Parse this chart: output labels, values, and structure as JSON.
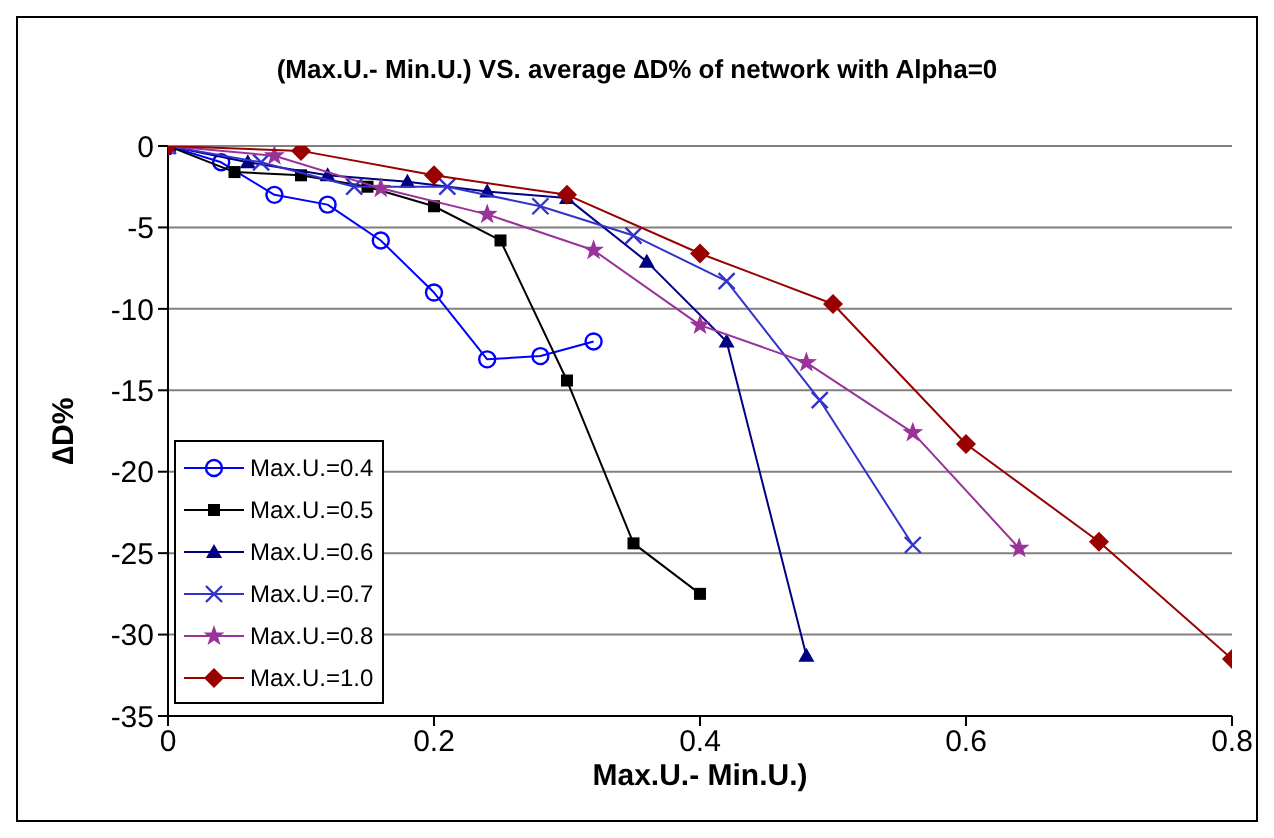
{
  "chart_data": {
    "type": "line",
    "title": "(Max.U.- Min.U.) VS. average ∆D% of network with Alpha=0",
    "xlabel": "Max.U.- Min.U.)",
    "ylabel": "∆D%",
    "xlim": [
      0,
      0.8
    ],
    "xticks": [
      0,
      0.2,
      0.4,
      0.6,
      0.8
    ],
    "ylim": [
      -35,
      0
    ],
    "yticks": [
      -35,
      -30,
      -25,
      -20,
      -15,
      -10,
      -5,
      0
    ],
    "grid": "y",
    "legend": "bottom left",
    "series": [
      {
        "name": "Max.U.=0.4",
        "color": "#0000ff",
        "marker": "circle",
        "x": [
          0,
          0.04,
          0.08,
          0.12,
          0.16,
          0.2,
          0.24,
          0.28,
          0.32
        ],
        "values": [
          0,
          -1,
          -3,
          -3.6,
          -5.8,
          -9,
          -13.1,
          -12.9,
          -12
        ]
      },
      {
        "name": "Max.U.=0.5",
        "color": "#000000",
        "marker": "square",
        "x": [
          0,
          0.05,
          0.1,
          0.15,
          0.2,
          0.25,
          0.3,
          0.35,
          0.4
        ],
        "values": [
          0,
          -1.6,
          -1.8,
          -2.5,
          -3.7,
          -5.8,
          -14.4,
          -24.4,
          -27.5
        ]
      },
      {
        "name": "Max.U.=0.6",
        "color": "#000080",
        "marker": "triangle",
        "x": [
          0,
          0.06,
          0.12,
          0.18,
          0.24,
          0.3,
          0.36,
          0.42,
          0.48
        ],
        "values": [
          0,
          -1,
          -1.8,
          -2.2,
          -2.8,
          -3.2,
          -7.1,
          -12,
          -31.3
        ]
      },
      {
        "name": "Max.U.=0.7",
        "color": "#3333cc",
        "marker": "cross",
        "x": [
          0,
          0.07,
          0.14,
          0.21,
          0.28,
          0.35,
          0.42,
          0.49,
          0.56
        ],
        "values": [
          0,
          -1,
          -2.5,
          -2.5,
          -3.7,
          -5.5,
          -8.3,
          -15.6,
          -24.5
        ]
      },
      {
        "name": "Max.U.=0.8",
        "color": "#993399",
        "marker": "star",
        "x": [
          0,
          0.08,
          0.16,
          0.24,
          0.32,
          0.4,
          0.48,
          0.56,
          0.64
        ],
        "values": [
          0,
          -0.6,
          -2.6,
          -4.2,
          -6.4,
          -11,
          -13.3,
          -17.6,
          -24.7
        ]
      },
      {
        "name": "Max.U.=1.0",
        "color": "#990000",
        "marker": "diamond",
        "x": [
          0,
          0.1,
          0.2,
          0.3,
          0.4,
          0.5,
          0.6,
          0.7,
          0.8
        ],
        "values": [
          0,
          -0.3,
          -1.8,
          -3,
          -6.6,
          -9.7,
          -18.3,
          -24.3,
          -31.5
        ]
      }
    ]
  }
}
